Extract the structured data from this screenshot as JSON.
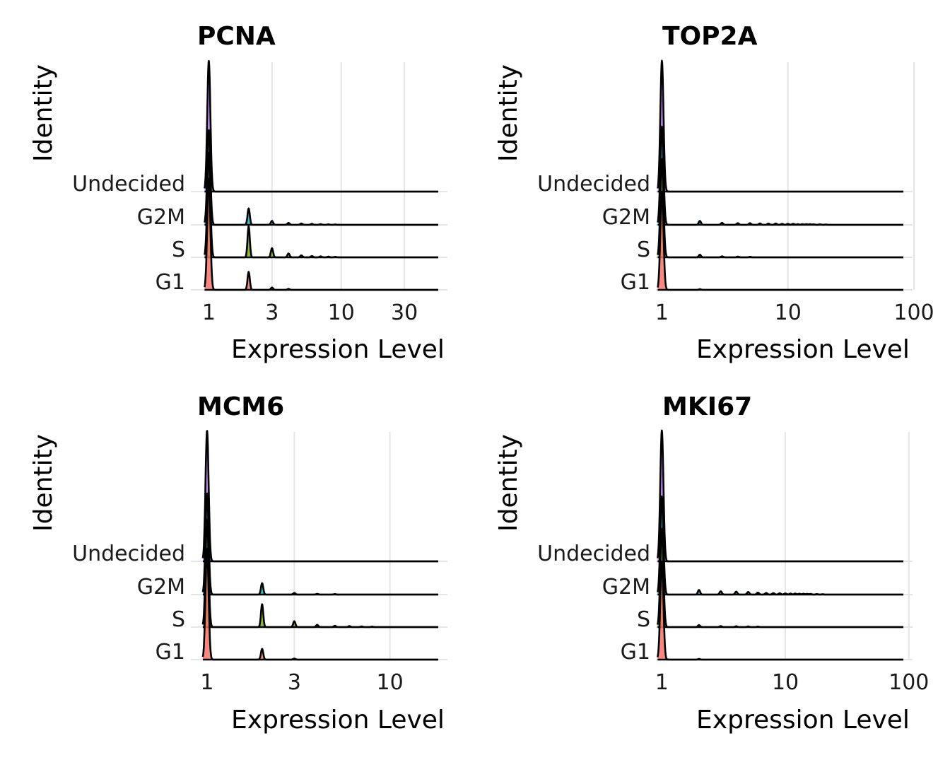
{
  "figure_type": "ridgeline",
  "colors": {
    "G1": "#F8766D",
    "S": "#7CAE00",
    "G2M": "#00BFC4",
    "Undecided": "#C77CFF",
    "outline": "#000000",
    "grid": "#e5e5e5"
  },
  "chart_data": [
    {
      "type": "ridgeline",
      "title": "PCNA",
      "xlabel": "Expression Level",
      "ylabel": "Identity",
      "x_scale": "log10",
      "xlim": [
        0.75,
        65
      ],
      "x_ticks": [
        1,
        3,
        10,
        30
      ],
      "x_tick_labels": [
        "1",
        "3",
        "10",
        "30"
      ],
      "categories": [
        "G1",
        "S",
        "G2M",
        "Undecided"
      ],
      "series": [
        {
          "name": "G1",
          "peaks": [
            {
              "x": 1,
              "h": 3.4
            },
            {
              "x": 2,
              "h": 0.55
            },
            {
              "x": 3,
              "h": 0.07
            },
            {
              "x": 4,
              "h": 0.03
            }
          ]
        },
        {
          "name": "S",
          "peaks": [
            {
              "x": 1,
              "h": 3.2
            },
            {
              "x": 2,
              "h": 0.95
            },
            {
              "x": 3,
              "h": 0.28
            },
            {
              "x": 4,
              "h": 0.12
            },
            {
              "x": 5,
              "h": 0.06
            },
            {
              "x": 6,
              "h": 0.04
            },
            {
              "x": 7,
              "h": 0.03
            },
            {
              "x": 8,
              "h": 0.02
            },
            {
              "x": 9,
              "h": 0.015
            }
          ]
        },
        {
          "name": "G2M",
          "peaks": [
            {
              "x": 1,
              "h": 2.9
            },
            {
              "x": 2,
              "h": 0.5
            },
            {
              "x": 3,
              "h": 0.12
            },
            {
              "x": 4,
              "h": 0.06
            },
            {
              "x": 5,
              "h": 0.04
            },
            {
              "x": 6,
              "h": 0.03
            },
            {
              "x": 7,
              "h": 0.02
            },
            {
              "x": 8,
              "h": 0.015
            },
            {
              "x": 9,
              "h": 0.01
            }
          ]
        },
        {
          "name": "Undecided",
          "peaks": [
            {
              "x": 1,
              "h": 4.0
            }
          ]
        }
      ]
    },
    {
      "type": "ridgeline",
      "title": "TOP2A",
      "xlabel": "Expression Level",
      "ylabel": "Identity",
      "x_scale": "log10",
      "xlim": [
        0.92,
        100
      ],
      "x_ticks": [
        1,
        10,
        100
      ],
      "x_tick_labels": [
        "1",
        "10",
        "100"
      ],
      "categories": [
        "G1",
        "S",
        "G2M",
        "Undecided"
      ],
      "series": [
        {
          "name": "G1",
          "peaks": [
            {
              "x": 1,
              "h": 3.0
            },
            {
              "x": 2,
              "h": 0.02
            }
          ]
        },
        {
          "name": "S",
          "peaks": [
            {
              "x": 1,
              "h": 3.0
            },
            {
              "x": 2,
              "h": 0.08
            },
            {
              "x": 3,
              "h": 0.03
            },
            {
              "x": 4,
              "h": 0.02
            },
            {
              "x": 5,
              "h": 0.015
            }
          ]
        },
        {
          "name": "G2M",
          "peaks": [
            {
              "x": 1,
              "h": 3.0
            },
            {
              "x": 2,
              "h": 0.12
            },
            {
              "x": 3,
              "h": 0.06
            },
            {
              "x": 4,
              "h": 0.05
            },
            {
              "x": 5,
              "h": 0.05
            },
            {
              "x": 6,
              "h": 0.04
            },
            {
              "x": 7,
              "h": 0.04
            },
            {
              "x": 8,
              "h": 0.04
            },
            {
              "x": 9,
              "h": 0.03
            },
            {
              "x": 10,
              "h": 0.03
            },
            {
              "x": 11,
              "h": 0.03
            },
            {
              "x": 12,
              "h": 0.02
            },
            {
              "x": 13,
              "h": 0.02
            },
            {
              "x": 14,
              "h": 0.02
            },
            {
              "x": 15,
              "h": 0.02
            },
            {
              "x": 16,
              "h": 0.015
            },
            {
              "x": 18,
              "h": 0.015
            },
            {
              "x": 20,
              "h": 0.01
            }
          ]
        },
        {
          "name": "Undecided",
          "peaks": [
            {
              "x": 1,
              "h": 4.0
            }
          ]
        }
      ]
    },
    {
      "type": "ridgeline",
      "title": "MCM6",
      "xlabel": "Expression Level",
      "ylabel": "Identity",
      "x_scale": "log10",
      "xlim": [
        0.83,
        21
      ],
      "x_ticks": [
        1,
        3,
        10
      ],
      "x_tick_labels": [
        "1",
        "3",
        "10"
      ],
      "categories": [
        "G1",
        "S",
        "G2M",
        "Undecided"
      ],
      "series": [
        {
          "name": "G1",
          "peaks": [
            {
              "x": 1,
              "h": 3.4
            },
            {
              "x": 2,
              "h": 0.33
            },
            {
              "x": 3,
              "h": 0.03
            }
          ]
        },
        {
          "name": "S",
          "peaks": [
            {
              "x": 1,
              "h": 3.3
            },
            {
              "x": 2,
              "h": 0.7
            },
            {
              "x": 3,
              "h": 0.18
            },
            {
              "x": 4,
              "h": 0.07
            },
            {
              "x": 5,
              "h": 0.04
            },
            {
              "x": 6,
              "h": 0.03
            },
            {
              "x": 7,
              "h": 0.02
            },
            {
              "x": 8,
              "h": 0.015
            }
          ]
        },
        {
          "name": "G2M",
          "peaks": [
            {
              "x": 1,
              "h": 3.1
            },
            {
              "x": 2,
              "h": 0.35
            },
            {
              "x": 3,
              "h": 0.05
            },
            {
              "x": 4,
              "h": 0.02
            },
            {
              "x": 5,
              "h": 0.015
            }
          ]
        },
        {
          "name": "Undecided",
          "peaks": [
            {
              "x": 1,
              "h": 4.0
            }
          ]
        }
      ]
    },
    {
      "type": "ridgeline",
      "title": "MKI67",
      "xlabel": "Expression Level",
      "ylabel": "Identity",
      "x_scale": "log10",
      "xlim": [
        0.92,
        110
      ],
      "x_ticks": [
        1,
        10,
        100
      ],
      "x_tick_labels": [
        "1",
        "10",
        "100"
      ],
      "categories": [
        "G1",
        "S",
        "G2M",
        "Undecided"
      ],
      "series": [
        {
          "name": "G1",
          "peaks": [
            {
              "x": 1,
              "h": 3.0
            },
            {
              "x": 2,
              "h": 0.02
            }
          ]
        },
        {
          "name": "S",
          "peaks": [
            {
              "x": 1,
              "h": 3.0
            },
            {
              "x": 2,
              "h": 0.06
            },
            {
              "x": 3,
              "h": 0.03
            },
            {
              "x": 4,
              "h": 0.025
            },
            {
              "x": 5,
              "h": 0.02
            },
            {
              "x": 6,
              "h": 0.015
            }
          ]
        },
        {
          "name": "G2M",
          "peaks": [
            {
              "x": 1,
              "h": 3.0
            },
            {
              "x": 2,
              "h": 0.14
            },
            {
              "x": 3,
              "h": 0.1
            },
            {
              "x": 4,
              "h": 0.09
            },
            {
              "x": 5,
              "h": 0.08
            },
            {
              "x": 6,
              "h": 0.06
            },
            {
              "x": 7,
              "h": 0.05
            },
            {
              "x": 8,
              "h": 0.045
            },
            {
              "x": 9,
              "h": 0.04
            },
            {
              "x": 10,
              "h": 0.035
            },
            {
              "x": 11,
              "h": 0.03
            },
            {
              "x": 12,
              "h": 0.03
            },
            {
              "x": 13,
              "h": 0.025
            },
            {
              "x": 14,
              "h": 0.025
            },
            {
              "x": 15,
              "h": 0.02
            },
            {
              "x": 16,
              "h": 0.02
            },
            {
              "x": 18,
              "h": 0.015
            },
            {
              "x": 20,
              "h": 0.01
            }
          ]
        },
        {
          "name": "Undecided",
          "peaks": [
            {
              "x": 1,
              "h": 4.0
            }
          ]
        }
      ]
    }
  ]
}
